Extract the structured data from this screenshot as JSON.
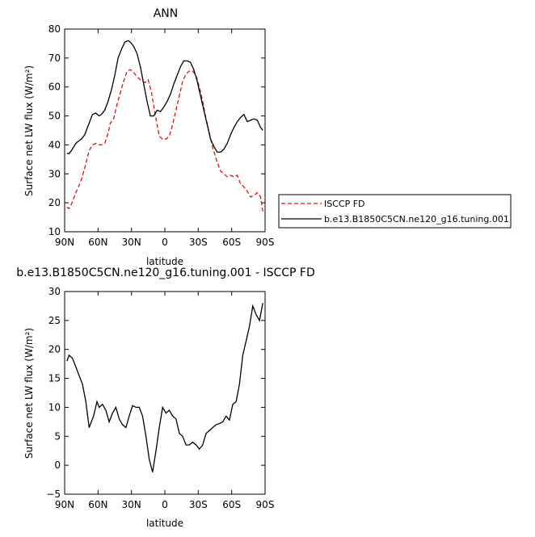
{
  "chart_data": [
    {
      "type": "line",
      "title": "ANN",
      "xlabel": "latitude",
      "ylabel": "Surface net LW flux (W/m²)",
      "xlim": [
        90,
        -90
      ],
      "ylim": [
        10,
        80
      ],
      "x_ticks": [
        90,
        60,
        30,
        0,
        -30,
        -60,
        -90
      ],
      "x_tick_labels": [
        "90N",
        "60N",
        "30N",
        "0",
        "30S",
        "60S",
        "90S"
      ],
      "y_ticks": [
        10,
        20,
        30,
        40,
        50,
        60,
        70,
        80
      ],
      "y_tick_labels": [
        "10",
        "20",
        "30",
        "40",
        "50",
        "60",
        "70",
        "80"
      ],
      "grid": false,
      "legend_position": "right",
      "series": [
        {
          "name": "ISCCP FD",
          "color": "#e01010",
          "dash": "dashed",
          "x": [
            88,
            86,
            84,
            80,
            77,
            75,
            72,
            68,
            65,
            62,
            59,
            57,
            54,
            51,
            49,
            46,
            43,
            40,
            37,
            34,
            31,
            28,
            25,
            22,
            18,
            15,
            12,
            8,
            5,
            2,
            -1,
            -4,
            -7,
            -10,
            -13,
            -16,
            -19,
            -22,
            -25,
            -28,
            -31,
            -34,
            -37,
            -40,
            -43,
            -47,
            -50,
            -53,
            -56,
            -59,
            -62,
            -65,
            -68,
            -71,
            -74,
            -77,
            -80,
            -83,
            -86,
            -88
          ],
          "y": [
            18.5,
            18,
            19.5,
            23.5,
            26,
            28,
            32,
            38,
            40,
            40.5,
            40,
            40,
            40.5,
            44,
            47.5,
            49,
            54,
            58,
            62,
            65.5,
            66,
            65,
            63.5,
            62.5,
            61.5,
            62.5,
            58,
            49,
            43,
            42,
            42,
            43,
            47,
            52,
            57,
            62,
            64.5,
            65.5,
            65.5,
            64,
            60,
            55,
            49,
            44,
            39,
            34,
            31,
            30,
            29,
            29.5,
            29,
            29.5,
            26.5,
            25.5,
            24,
            22,
            22.5,
            23.5,
            22,
            17
          ]
        },
        {
          "name": "b.e13.B1850C5CN.ne120_g16.tuning.001",
          "color": "#000000",
          "dash": "solid",
          "x": [
            88,
            86,
            84,
            80,
            77,
            75,
            72,
            68,
            65,
            62,
            59,
            57,
            54,
            51,
            48,
            45,
            42,
            39,
            36,
            33,
            31,
            28,
            25,
            22,
            19,
            16,
            13,
            10,
            7,
            4,
            1,
            -2,
            -5,
            -8,
            -11,
            -14,
            -17,
            -20,
            -23,
            -26,
            -29,
            -32,
            -35,
            -38,
            -41,
            -44,
            -47,
            -50,
            -53,
            -56,
            -59,
            -62,
            -65,
            -68,
            -71,
            -74,
            -77,
            -80,
            -83,
            -86,
            -88
          ],
          "y": [
            37,
            37,
            38,
            40.5,
            41.5,
            42,
            43.5,
            47.5,
            50.5,
            51,
            50,
            50.5,
            52,
            55,
            59,
            64,
            70,
            73,
            75.5,
            76,
            75.5,
            74,
            71.5,
            67,
            61,
            55,
            50,
            50,
            52,
            51.5,
            53,
            55,
            57.5,
            61,
            64,
            67,
            69,
            69,
            68.5,
            66,
            62,
            57,
            52,
            47,
            42,
            39.5,
            37.5,
            37.5,
            38.5,
            40.5,
            43.5,
            46,
            48,
            49.5,
            50.5,
            48,
            48.5,
            49,
            48.5,
            46,
            45
          ]
        }
      ]
    },
    {
      "type": "line",
      "title": "b.e13.B1850C5CN.ne120_g16.tuning.001 - ISCCP FD",
      "xlabel": "latitude",
      "ylabel": "Surface net LW flux (W/m²)",
      "xlim": [
        90,
        -90
      ],
      "ylim": [
        -5,
        30
      ],
      "x_ticks": [
        90,
        60,
        30,
        0,
        -30,
        -60,
        -90
      ],
      "x_tick_labels": [
        "90N",
        "60N",
        "30N",
        "0",
        "30S",
        "60S",
        "90S"
      ],
      "y_ticks": [
        -5,
        0,
        5,
        10,
        15,
        20,
        25,
        30
      ],
      "y_tick_labels": [
        "−5",
        "0",
        "5",
        "10",
        "15",
        "20",
        "25",
        "30"
      ],
      "grid": false,
      "series": [
        {
          "color": "#000000",
          "dash": "solid",
          "x": [
            88,
            86,
            83,
            80,
            77,
            74,
            71,
            68,
            64,
            61,
            59,
            56,
            53,
            50,
            47,
            44,
            41,
            38,
            35,
            32,
            29,
            26,
            23,
            20,
            17,
            14,
            11,
            8,
            5,
            2,
            -1,
            -4,
            -7,
            -10,
            -13,
            -16,
            -19,
            -22,
            -25,
            -28,
            -31,
            -34,
            -37,
            -40,
            -43,
            -46,
            -49,
            -52,
            -55,
            -58,
            -61,
            -64,
            -67,
            -70,
            -73,
            -76,
            -79,
            -82,
            -85,
            -88
          ],
          "y": [
            18,
            19,
            18.5,
            17,
            15.5,
            14,
            11,
            6.5,
            8.5,
            11,
            10,
            10.5,
            9.5,
            7.5,
            9,
            10,
            8,
            7,
            6.5,
            8.5,
            10.3,
            10,
            10,
            8.5,
            5,
            1,
            -1.2,
            2.5,
            6.5,
            10,
            9,
            9.5,
            8.5,
            8,
            5.5,
            5,
            3.5,
            3.5,
            4,
            3.5,
            2.8,
            3.5,
            5.5,
            6,
            6.5,
            7,
            7.2,
            7.5,
            8.5,
            7.8,
            10.5,
            11,
            14,
            19,
            21.5,
            24,
            27.5,
            26,
            25,
            28
          ]
        }
      ]
    }
  ]
}
